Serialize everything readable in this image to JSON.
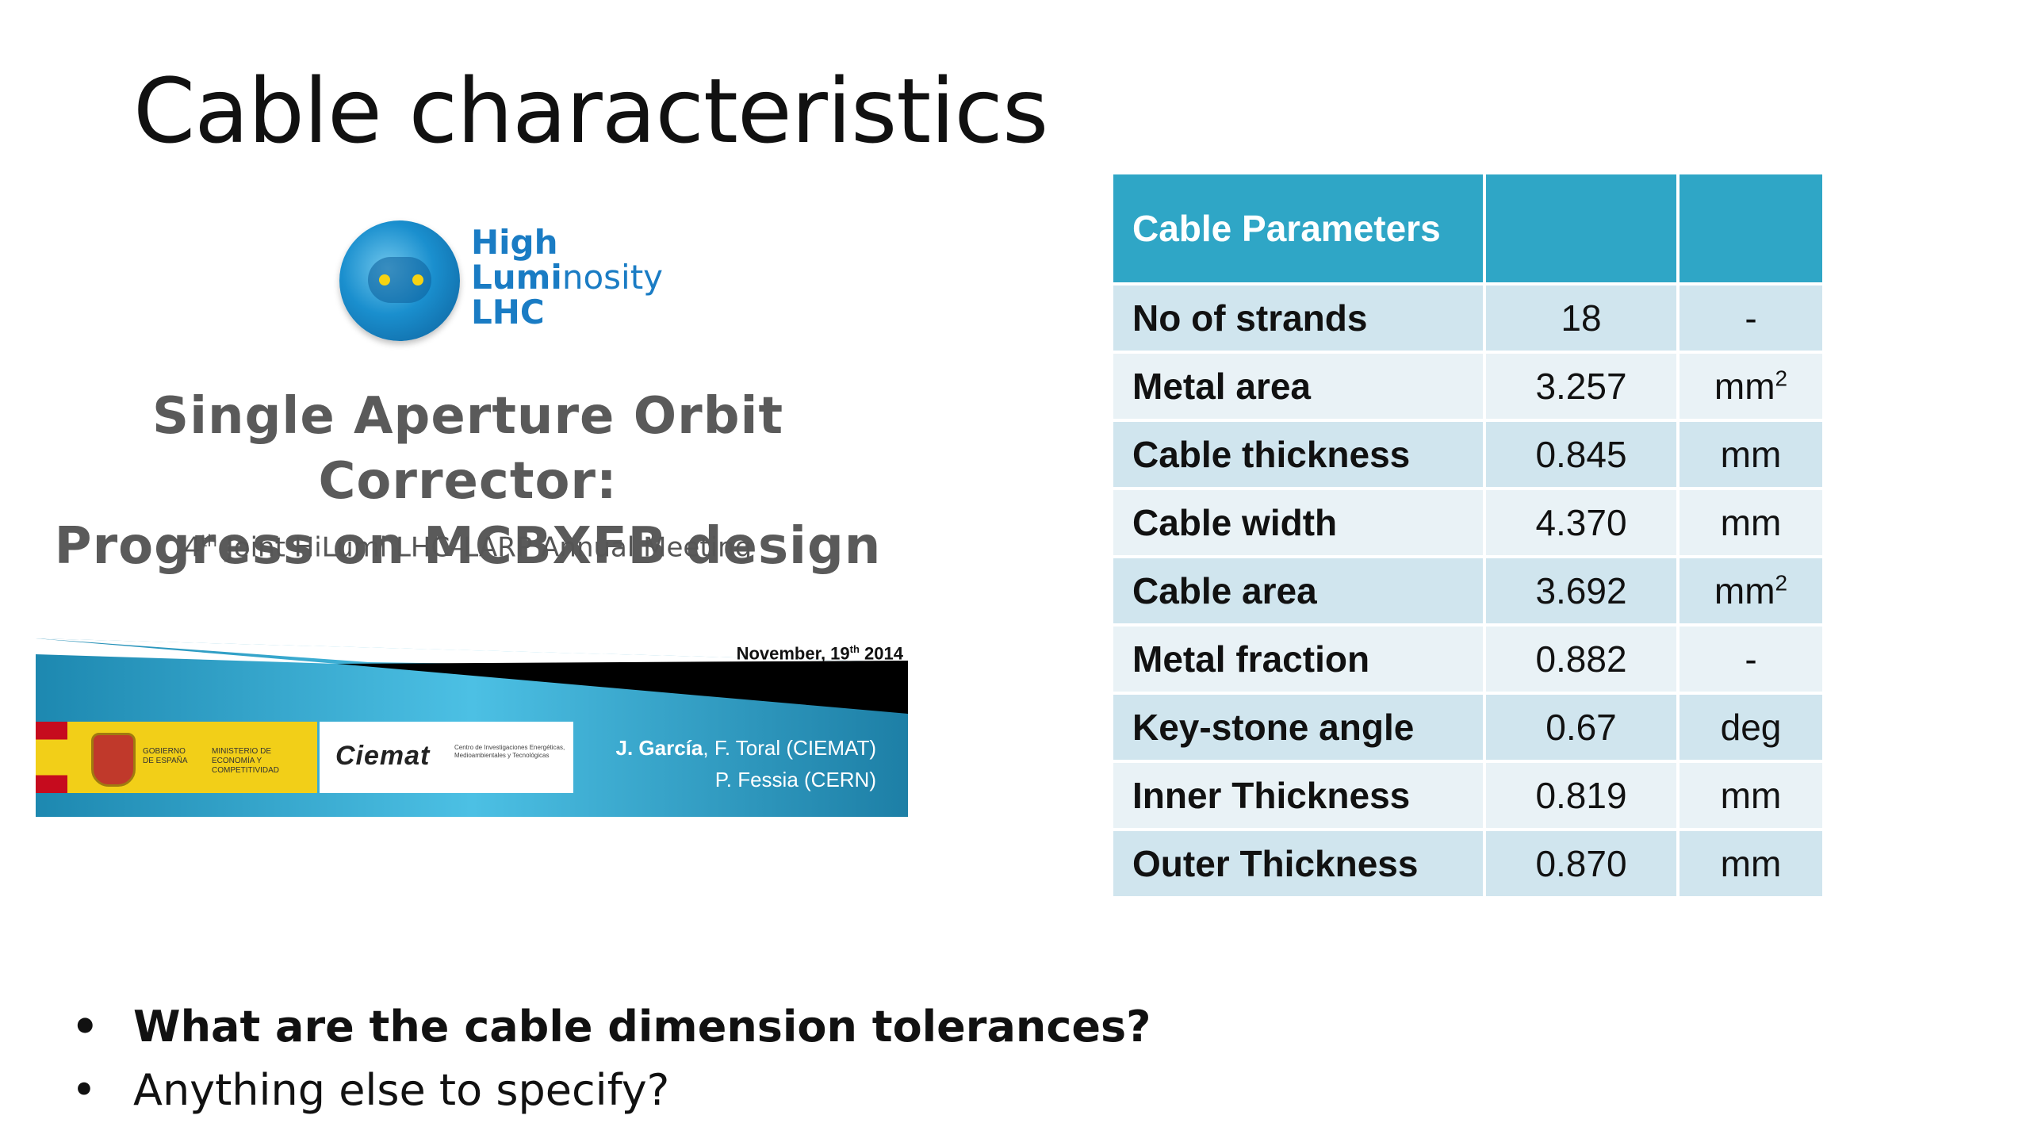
{
  "slide": {
    "title": "Cable characteristics"
  },
  "thumbnail": {
    "logo": {
      "line1": "High",
      "line2a": "Lumi",
      "line2b": "nosity",
      "line3": "LHC"
    },
    "title_line1": "Single Aperture Orbit Corrector:",
    "title_line2": "Progress on MCBXFB design",
    "subtitle_prefix": "4",
    "subtitle_sup": "th",
    "subtitle_rest": " Joint HiLumi LHC–LARP Annual Meeting",
    "date_prefix": "November, 19",
    "date_sup": "th",
    "date_rest": " 2014",
    "gov_text1": "GOBIERNO DE ESPAÑA",
    "gov_text2": "MINISTERIO DE ECONOMÍA Y COMPETITIVIDAD",
    "ciemat_word": "Ciemat",
    "ciemat_small": "Centro de Investigaciones Energéticas, Medioambientales y Tecnológicas",
    "author_bold": "J. García",
    "author_rest": ", F. Toral (CIEMAT)",
    "author_line2": "P. Fessia (CERN)"
  },
  "table": {
    "header": "Cable Parameters",
    "rows": [
      {
        "param": "No of strands",
        "value": "18",
        "unit": "-",
        "unit_sup": ""
      },
      {
        "param": "Metal area",
        "value": "3.257",
        "unit": "mm",
        "unit_sup": "2"
      },
      {
        "param": "Cable thickness",
        "value": "0.845",
        "unit": "mm",
        "unit_sup": ""
      },
      {
        "param": "Cable width",
        "value": "4.370",
        "unit": "mm",
        "unit_sup": ""
      },
      {
        "param": "Cable area",
        "value": "3.692",
        "unit": "mm",
        "unit_sup": "2"
      },
      {
        "param": "Metal fraction",
        "value": "0.882",
        "unit": "-",
        "unit_sup": ""
      },
      {
        "param": "Key-stone angle",
        "value": "0.67",
        "unit": "deg",
        "unit_sup": ""
      },
      {
        "param": "Inner Thickness",
        "value": "0.819",
        "unit": "mm",
        "unit_sup": ""
      },
      {
        "param": "Outer Thickness",
        "value": "0.870",
        "unit": "mm",
        "unit_sup": ""
      }
    ]
  },
  "bullets": {
    "marker": "•",
    "item1": "What are the cable dimension tolerances?",
    "item2": "Anything else to specify?"
  },
  "colors": {
    "table_header": "#2fa6c6",
    "row_odd": "#d0e5ee",
    "row_even": "#e9f2f6"
  }
}
